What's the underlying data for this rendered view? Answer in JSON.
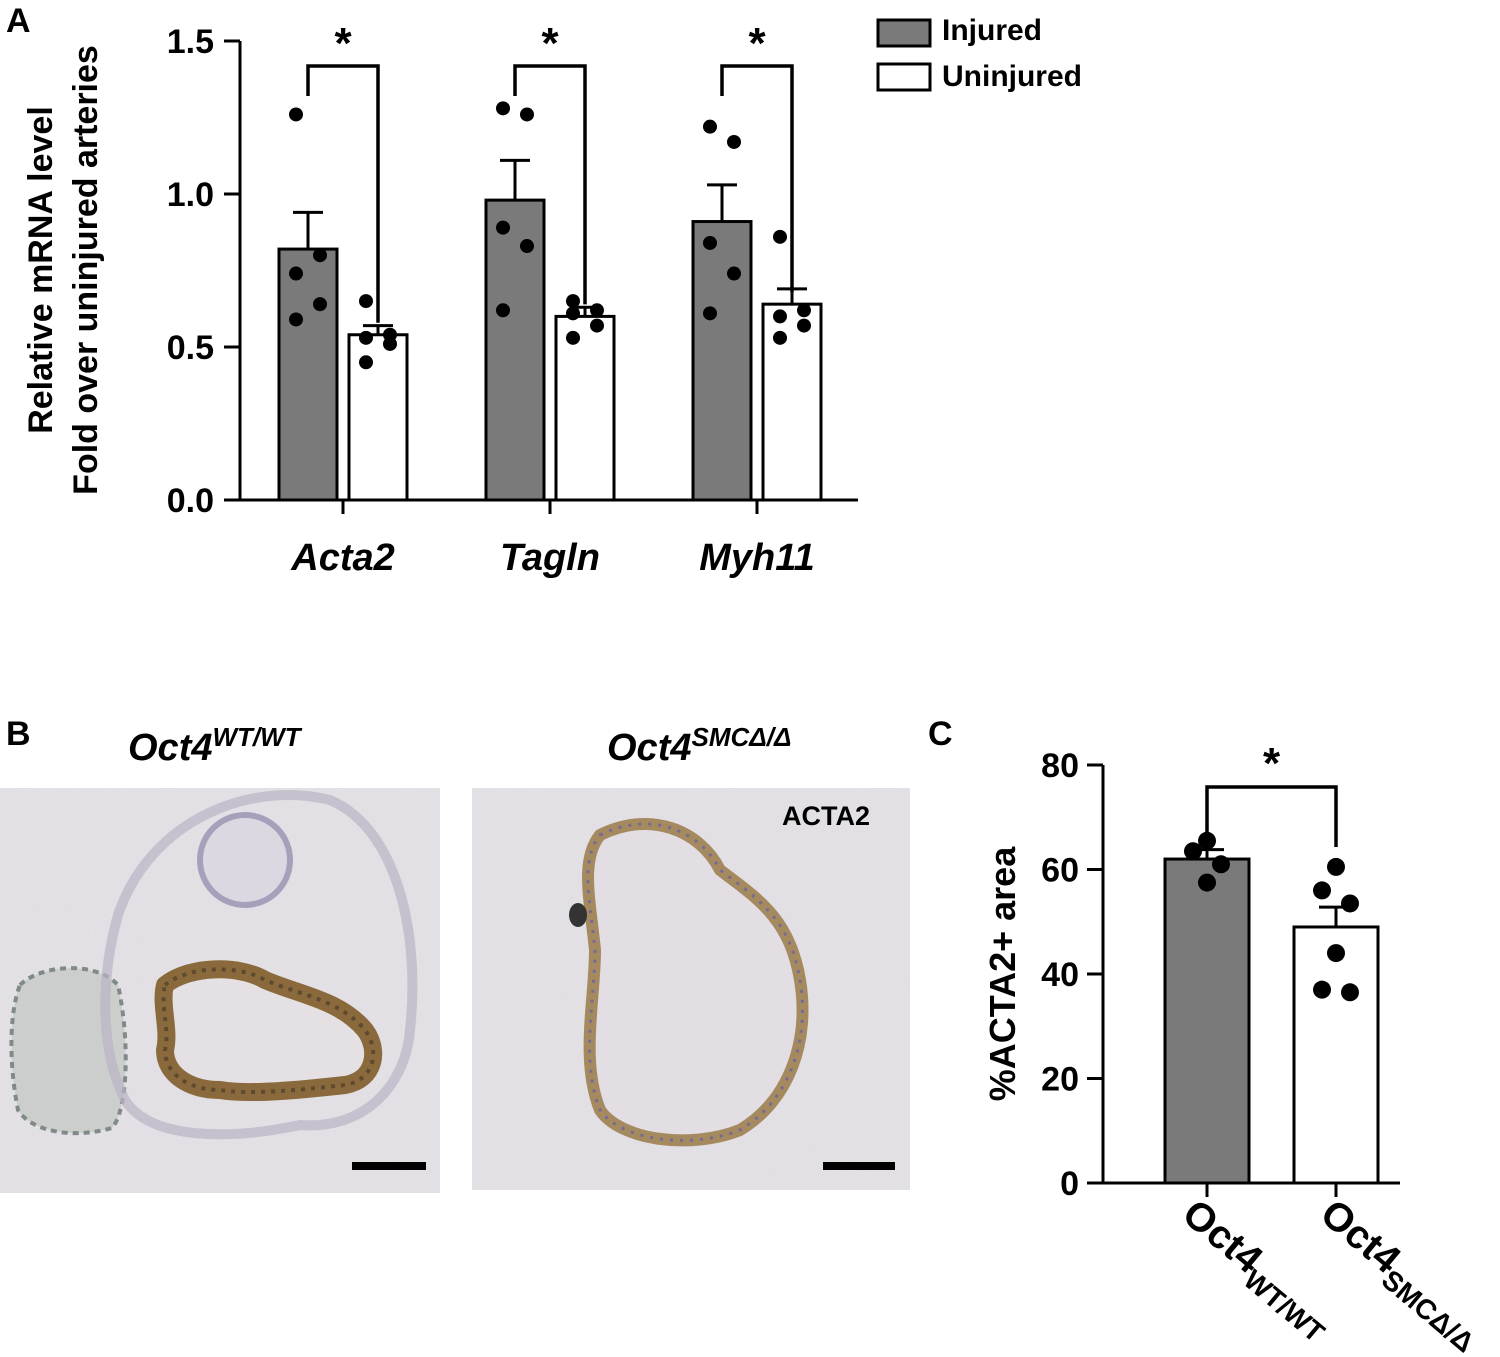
{
  "figure": {
    "panel_labels": {
      "a": "A",
      "b": "B",
      "c": "C"
    },
    "legend": [
      {
        "label": "Injured",
        "fill": "#7a7a7a"
      },
      {
        "label": "Uninjured",
        "fill": "#ffffff"
      }
    ],
    "micrographs": {
      "left_title": {
        "base": "Oct4",
        "sup": "WT/WT"
      },
      "right_title": {
        "base": "Oct4",
        "sup": "SMCΔ/Δ"
      },
      "stain_label": "ACTA2"
    },
    "colors": {
      "injured": "#7a7a7a",
      "uninjured": "#ffffff",
      "stain_brown": "#8a6a3c",
      "nuclei": "#6b62a0",
      "tissue_bg": "#e6e3e6"
    }
  },
  "chart_data": [
    {
      "panel": "A",
      "type": "bar",
      "ylabel_lines": [
        "Relative mRNA level",
        "Fold over uninjured arteries"
      ],
      "xlabel": "",
      "categories": [
        "Acta2",
        "Tagln",
        "Myh11"
      ],
      "ylim": [
        0,
        1.5
      ],
      "yticks": [
        "0.0",
        "0.5",
        "1.0",
        "1.5"
      ],
      "significance": [
        "*",
        "*",
        "*"
      ],
      "series": [
        {
          "name": "Injured",
          "values": [
            0.82,
            0.98,
            0.91
          ],
          "sem": [
            0.12,
            0.13,
            0.12
          ],
          "points": [
            [
              1.26,
              0.8,
              0.74,
              0.64,
              0.59
            ],
            [
              1.28,
              1.26,
              0.89,
              0.83,
              0.62
            ],
            [
              1.22,
              1.17,
              0.84,
              0.74,
              0.61
            ]
          ]
        },
        {
          "name": "Uninjured",
          "values": [
            0.54,
            0.6,
            0.64
          ],
          "sem": [
            0.03,
            0.03,
            0.05
          ],
          "points": [
            [
              0.65,
              0.54,
              0.53,
              0.51,
              0.45
            ],
            [
              0.65,
              0.62,
              0.61,
              0.57,
              0.53
            ],
            [
              0.86,
              0.62,
              0.6,
              0.57,
              0.53
            ]
          ]
        }
      ]
    },
    {
      "panel": "C",
      "type": "bar",
      "ylabel": "%ACTA2+ area",
      "categories": [
        {
          "base": "Oct4",
          "sup": "WT/WT"
        },
        {
          "base": "Oct4",
          "sup": "SMCΔ/Δ"
        }
      ],
      "ylim": [
        0,
        80
      ],
      "yticks": [
        "0",
        "20",
        "40",
        "60",
        "80"
      ],
      "significance": "*",
      "values": [
        62,
        49
      ],
      "sem": [
        1.8,
        3.8
      ],
      "fills": [
        "#7a7a7a",
        "#ffffff"
      ],
      "points": [
        [
          65.5,
          63.5,
          61,
          57.5
        ],
        [
          60.5,
          56,
          53.5,
          44,
          37,
          36.5
        ]
      ]
    }
  ]
}
